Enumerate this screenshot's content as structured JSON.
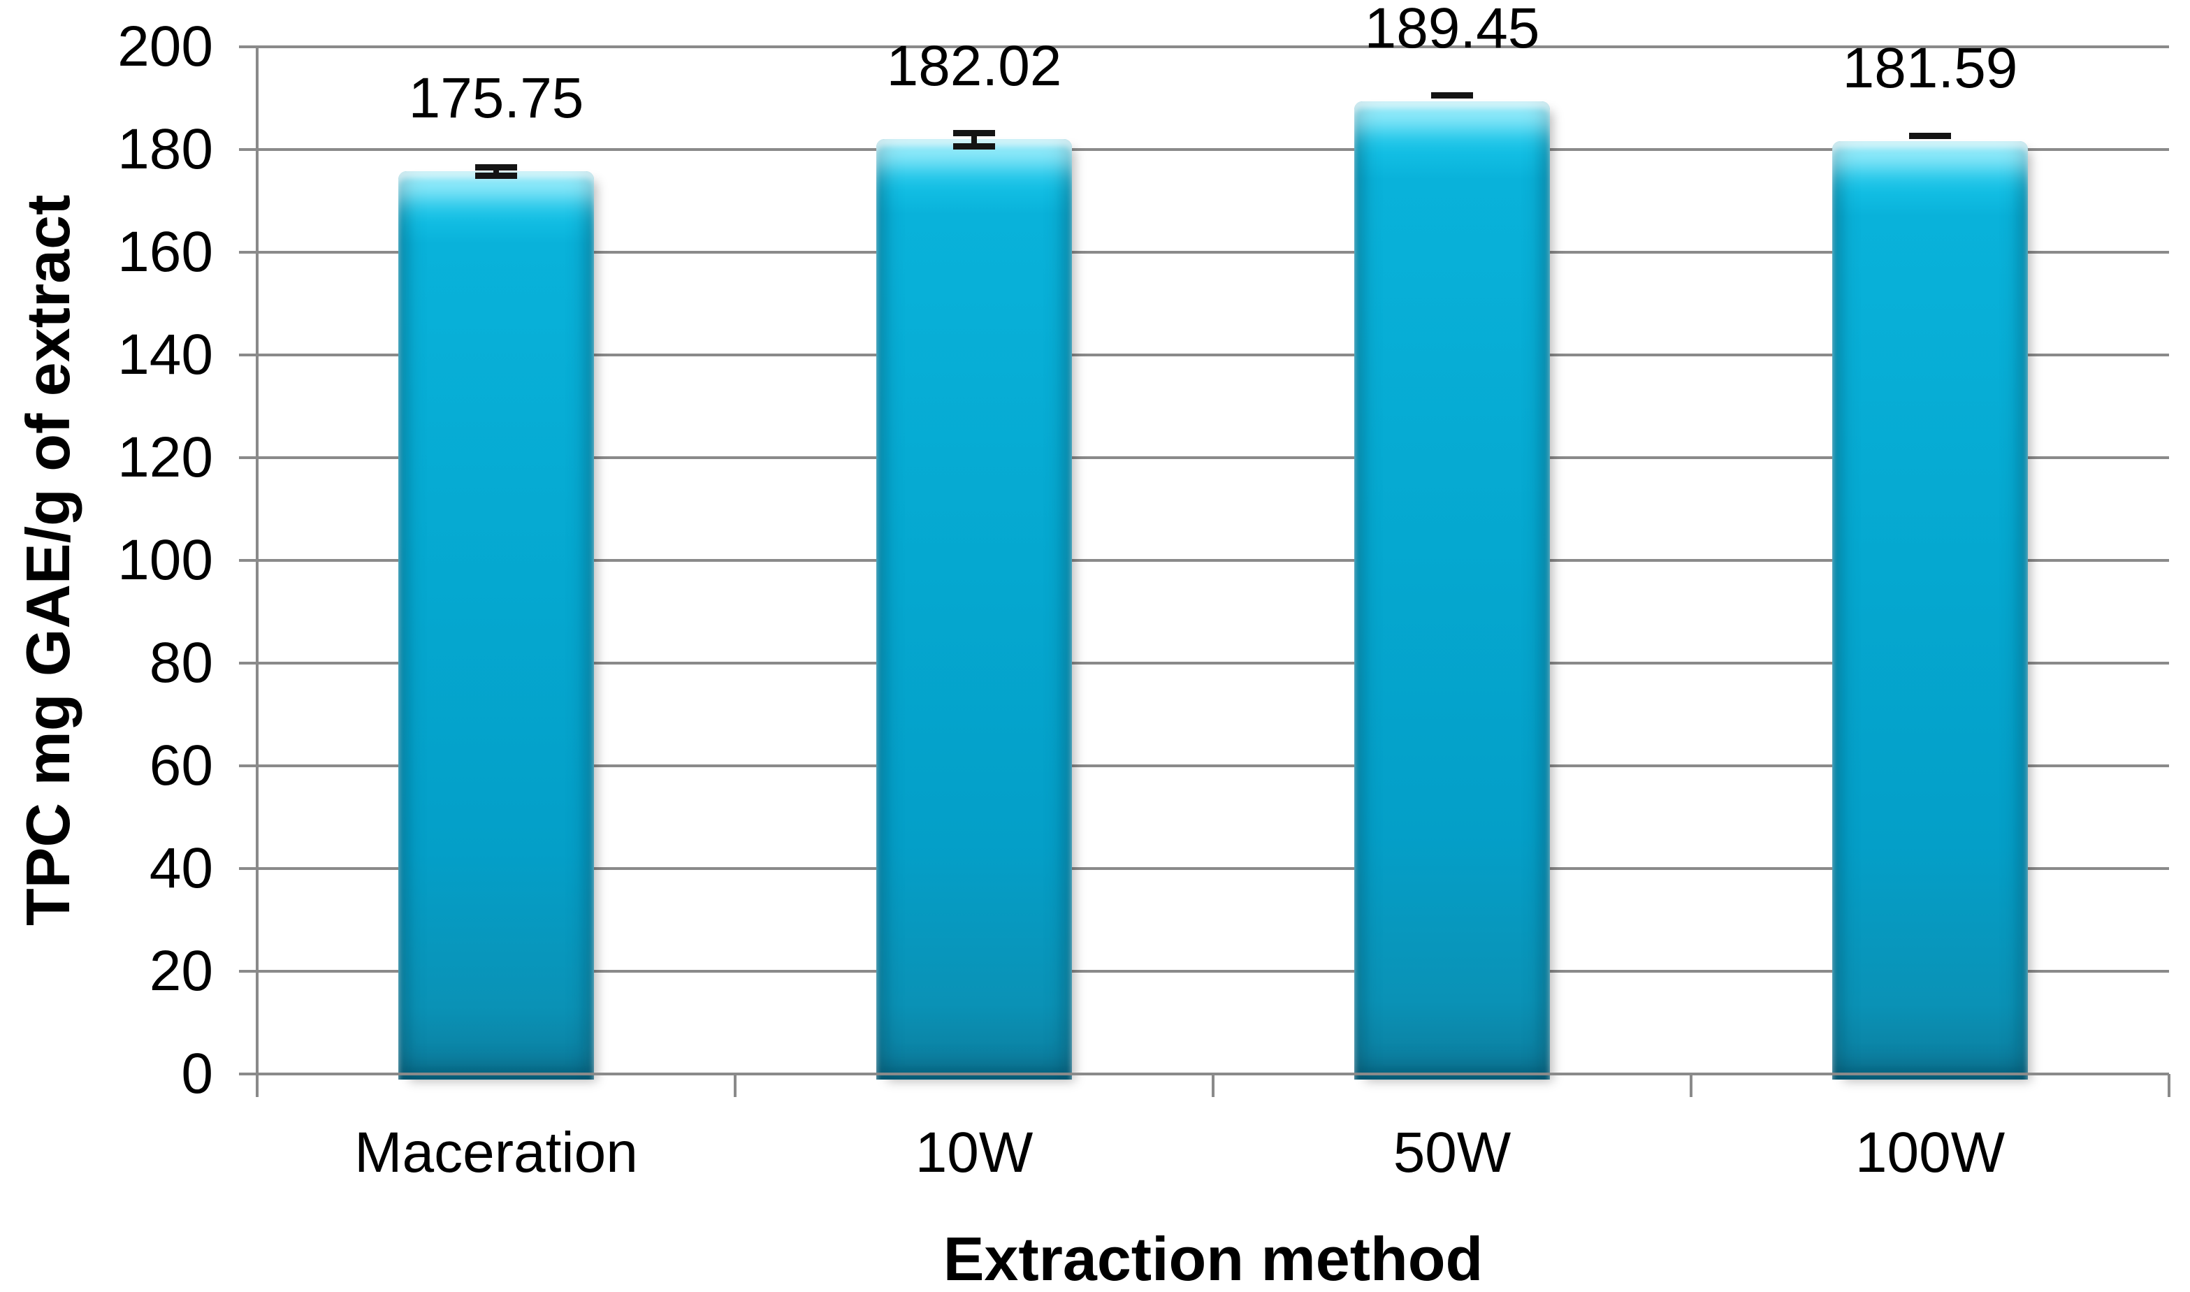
{
  "chart_data": {
    "type": "bar",
    "title": "",
    "categories": [
      "Maceration",
      "10W",
      "50W",
      "100W"
    ],
    "values": [
      175.75,
      182.02,
      189.45,
      181.59
    ],
    "data_labels": [
      "175.75",
      "182.02",
      "189.45",
      "181.59"
    ],
    "errors": [
      0.8,
      1.3,
      1.1,
      1.1
    ],
    "error_style": [
      "i-beam",
      "i-beam",
      "top-cap",
      "top-cap"
    ],
    "xlabel": "Extraction method",
    "ylabel": "TPC mg GAE/g of extract",
    "ylim": [
      0,
      200
    ],
    "ytick_interval": 20,
    "yticks": [
      0,
      20,
      40,
      60,
      80,
      100,
      120,
      140,
      160,
      180,
      200
    ],
    "grid": "horizontal-only",
    "legend": "none",
    "colors": {
      "bar_fill": "#05a8d0",
      "bar_highlight": "#31dcf9",
      "bar_dark_edge": "#0b7b9b",
      "gridline": "#8a8a8a",
      "axis_line": "#8a8a8a",
      "text": "#000000",
      "error_bar": "#141414",
      "background": "#ffffff"
    }
  }
}
